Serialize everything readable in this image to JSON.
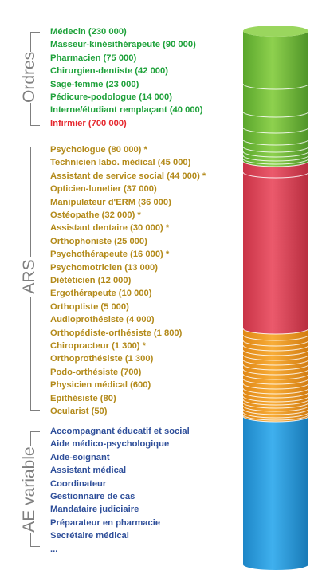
{
  "groups": [
    {
      "label": "Ordres",
      "items": [
        {
          "text": "Médecin (230 000)",
          "color": "green"
        },
        {
          "text": "Masseur-kinésithérapeute (90 000)",
          "color": "green"
        },
        {
          "text": "Pharmacien (75 000)",
          "color": "green"
        },
        {
          "text": "Chirurgien-dentiste (42 000)",
          "color": "green"
        },
        {
          "text": "Sage-femme (23 000)",
          "color": "green"
        },
        {
          "text": "Pédicure-podologue (14 000)",
          "color": "green"
        },
        {
          "text": "Interne/étudiant remplaçant (40 000)",
          "color": "green"
        },
        {
          "text": "Infirmier (700 000)",
          "color": "red"
        }
      ]
    },
    {
      "label": "ARS",
      "items": [
        {
          "text": "Psychologue (80 000) *",
          "color": "gold"
        },
        {
          "text": "Technicien labo. médical (45 000)",
          "color": "gold"
        },
        {
          "text": "Assistant de service social (44 000) *",
          "color": "gold"
        },
        {
          "text": "Opticien-lunetier (37 000)",
          "color": "gold"
        },
        {
          "text": "Manipulateur d'ERM (36 000)",
          "color": "gold"
        },
        {
          "text": "Ostéopathe (32 000) *",
          "color": "gold"
        },
        {
          "text": "Assistant dentaire (30 000) *",
          "color": "gold"
        },
        {
          "text": "Orthophoniste (25 000)",
          "color": "gold"
        },
        {
          "text": "Psychothérapeute (16 000) *",
          "color": "gold"
        },
        {
          "text": "Psychomotricien (13 000)",
          "color": "gold"
        },
        {
          "text": "Diététicien (12 000)",
          "color": "gold"
        },
        {
          "text": "Ergothérapeute (10 000)",
          "color": "gold"
        },
        {
          "text": "Orthoptiste (5 000)",
          "color": "gold"
        },
        {
          "text": "Audioprothésiste (4 000)",
          "color": "gold"
        },
        {
          "text": "Orthopédiste-orthésiste (1 800)",
          "color": "gold"
        },
        {
          "text": "Chiropracteur (1 300) *",
          "color": "gold"
        },
        {
          "text": "Orthoprothésiste (1 300)",
          "color": "gold"
        },
        {
          "text": "Podo-orthésiste (700)",
          "color": "gold"
        },
        {
          "text": "Physicien médical (600)",
          "color": "gold"
        },
        {
          "text": "Epithésiste (80)",
          "color": "gold"
        },
        {
          "text": "Ocularist (50)",
          "color": "gold"
        }
      ]
    },
    {
      "label": "AE variable",
      "items": [
        {
          "text": "Accompagnant éducatif et social",
          "color": "blue"
        },
        {
          "text": "Aide médico-psychologique",
          "color": "blue"
        },
        {
          "text": "Aide-soignant",
          "color": "blue"
        },
        {
          "text": "Assistant médical",
          "color": "blue"
        },
        {
          "text": "Coordinateur",
          "color": "blue"
        },
        {
          "text": "Gestionnaire de cas",
          "color": "blue"
        },
        {
          "text": "Mandataire judiciaire",
          "color": "blue"
        },
        {
          "text": "Préparateur en pharmacie",
          "color": "blue"
        },
        {
          "text": "Secrétaire médical",
          "color": "blue"
        },
        {
          "text": "...",
          "color": "blue"
        }
      ]
    }
  ],
  "cylinder_segments": [
    {
      "name": "ordres",
      "color": "#7ac143"
    },
    {
      "name": "infirmier",
      "color": "#e0445a"
    },
    {
      "name": "ars",
      "color": "#f39c1f"
    },
    {
      "name": "ae-variable",
      "color": "#2a9ee0"
    }
  ]
}
